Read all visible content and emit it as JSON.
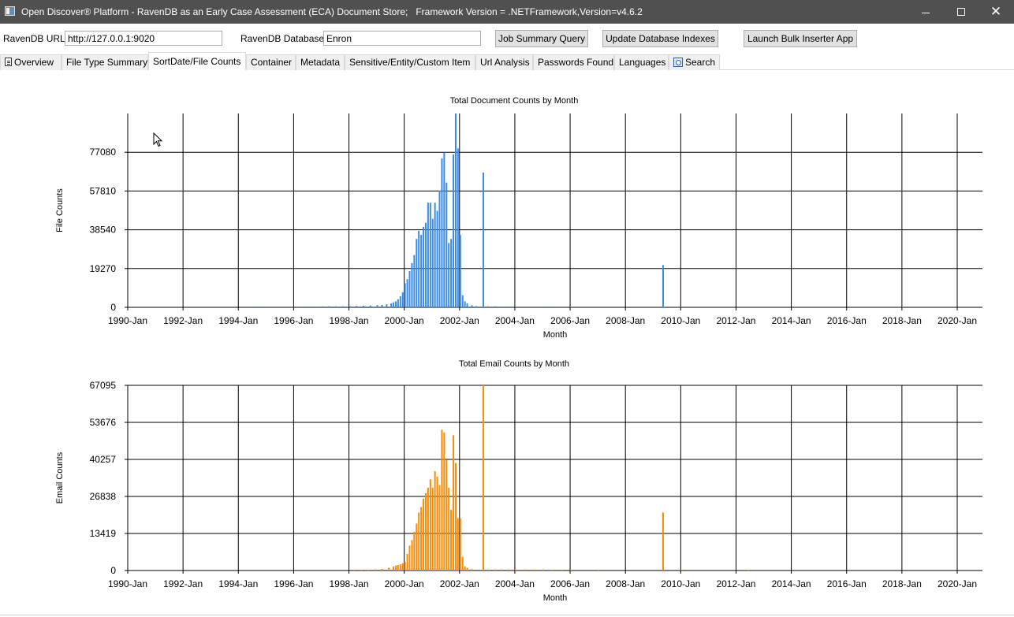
{
  "window": {
    "title": "Open Discover® Platform - RavenDB as an Early Case Assessment (ECA) Document Store;   Framework Version = .NETFramework,Version=v4.6.2"
  },
  "toolbar": {
    "url_label": "RavenDB URL:",
    "url_value": "http://127.0.0.1:9020",
    "db_label": "RavenDB Database:",
    "db_value": "Enron",
    "job_summary_label": "Job Summary Query",
    "update_indexes_label": "Update Database Indexes",
    "bulk_inserter_label": "Launch Bulk Inserter App"
  },
  "tabs": [
    {
      "label": "Overview",
      "icon": "document-icon"
    },
    {
      "label": "File Type Summary"
    },
    {
      "label": "SortDate/File Counts",
      "active": true
    },
    {
      "label": "Container"
    },
    {
      "label": "Metadata"
    },
    {
      "label": "Sensitive/Entity/Custom Item"
    },
    {
      "label": "Url Analysis"
    },
    {
      "label": "Passwords Found"
    },
    {
      "label": "Languages"
    },
    {
      "label": "Search",
      "icon": "search-icon"
    }
  ],
  "chart_data": [
    {
      "type": "bar",
      "title": "Total Document Counts by Month",
      "xlabel": "Month",
      "ylabel": "File Counts",
      "color": "#3c8ce6",
      "x_ticks": [
        "1990-Jan",
        "1992-Jan",
        "1994-Jan",
        "1996-Jan",
        "1998-Jan",
        "2000-Jan",
        "2002-Jan",
        "2004-Jan",
        "2006-Jan",
        "2008-Jan",
        "2010-Jan",
        "2012-Jan",
        "2014-Jan",
        "2016-Jan",
        "2018-Jan",
        "2020-Jan"
      ],
      "y_ticks": [
        0,
        19270,
        38540,
        57810,
        77080
      ],
      "ylim": [
        0,
        96350
      ],
      "xlim": [
        "1990-Jan",
        "2020-Dec"
      ],
      "grid": true,
      "points": [
        [
          "1994-Jul",
          300
        ],
        [
          "1994-Nov",
          300
        ],
        [
          "1995-Mar",
          300
        ],
        [
          "1996-Jan",
          400
        ],
        [
          "1996-May",
          400
        ],
        [
          "1996-Sep",
          400
        ],
        [
          "1997-Jan",
          500
        ],
        [
          "1997-Apr",
          500
        ],
        [
          "1997-Jul",
          500
        ],
        [
          "1997-Oct",
          500
        ],
        [
          "1998-Jan",
          600
        ],
        [
          "1998-Apr",
          700
        ],
        [
          "1998-Jul",
          800
        ],
        [
          "1998-Oct",
          900
        ],
        [
          "1999-Jan",
          1100
        ],
        [
          "1999-Mar",
          1200
        ],
        [
          "1999-May",
          1500
        ],
        [
          "1999-Jul",
          2000
        ],
        [
          "1999-Aug",
          2500
        ],
        [
          "1999-Sep",
          3000
        ],
        [
          "1999-Oct",
          4000
        ],
        [
          "1999-Nov",
          5500
        ],
        [
          "1999-Dec",
          7500
        ],
        [
          "2000-Jan",
          12000
        ],
        [
          "2000-Feb",
          14000
        ],
        [
          "2000-Mar",
          18000
        ],
        [
          "2000-Apr",
          22000
        ],
        [
          "2000-May",
          26000
        ],
        [
          "2000-Jun",
          34000
        ],
        [
          "2000-Jul",
          38000
        ],
        [
          "2000-Aug",
          36000
        ],
        [
          "2000-Sep",
          40000
        ],
        [
          "2000-Oct",
          42000
        ],
        [
          "2000-Nov",
          52000
        ],
        [
          "2000-Dec",
          52000
        ],
        [
          "2001-Jan",
          44000
        ],
        [
          "2001-Feb",
          52000
        ],
        [
          "2001-Mar",
          48000
        ],
        [
          "2001-Apr",
          58000
        ],
        [
          "2001-May",
          74000
        ],
        [
          "2001-Jun",
          77000
        ],
        [
          "2001-Jul",
          62000
        ],
        [
          "2001-Aug",
          32000
        ],
        [
          "2001-Sep",
          34000
        ],
        [
          "2001-Oct",
          76000
        ],
        [
          "2001-Nov",
          96350
        ],
        [
          "2001-Dec",
          79000
        ],
        [
          "2002-Jan",
          36000
        ],
        [
          "2002-Feb",
          6000
        ],
        [
          "2002-Mar",
          3000
        ],
        [
          "2002-Apr",
          2000
        ],
        [
          "2002-Jun",
          1000
        ],
        [
          "2002-Aug",
          600
        ],
        [
          "2002-Nov",
          67000
        ],
        [
          "2003-Jan",
          500
        ],
        [
          "2003-Apr",
          500
        ],
        [
          "2003-Jul",
          400
        ],
        [
          "2003-Oct",
          400
        ],
        [
          "2004-Jan",
          400
        ],
        [
          "2004-May",
          400
        ],
        [
          "2004-Sep",
          400
        ],
        [
          "2005-Jan",
          400
        ],
        [
          "2005-May",
          300
        ],
        [
          "2005-Sep",
          300
        ],
        [
          "2006-Jan",
          300
        ],
        [
          "2006-Jun",
          300
        ],
        [
          "2007-Jan",
          300
        ],
        [
          "2007-Jun",
          300
        ],
        [
          "2009-May",
          21000
        ],
        [
          "2010-Jan",
          300
        ],
        [
          "2012-Jun",
          300
        ],
        [
          "2017-Jul",
          300
        ],
        [
          "2018-Jan",
          300
        ],
        [
          "2018-May",
          300
        ]
      ]
    },
    {
      "type": "bar",
      "title": "Total Email Counts by Month",
      "xlabel": "Month",
      "ylabel": "Email Counts",
      "color": "#f58c0a",
      "x_ticks": [
        "1990-Jan",
        "1992-Jan",
        "1994-Jan",
        "1996-Jan",
        "1998-Jan",
        "2000-Jan",
        "2002-Jan",
        "2004-Jan",
        "2006-Jan",
        "2008-Jan",
        "2010-Jan",
        "2012-Jan",
        "2014-Jan",
        "2016-Jan",
        "2018-Jan",
        "2020-Jan"
      ],
      "y_ticks": [
        0,
        13419,
        26838,
        40257,
        53676,
        67095
      ],
      "ylim": [
        0,
        67095
      ],
      "xlim": [
        "1990-Jan",
        "2020-Dec"
      ],
      "grid": true,
      "points": [
        [
          "1998-Mar",
          200
        ],
        [
          "1998-Jun",
          200
        ],
        [
          "1998-Sep",
          300
        ],
        [
          "1998-Dec",
          400
        ],
        [
          "1999-Mar",
          600
        ],
        [
          "1999-Jun",
          1000
        ],
        [
          "1999-Aug",
          1500
        ],
        [
          "1999-Sep",
          1800
        ],
        [
          "1999-Oct",
          2000
        ],
        [
          "1999-Nov",
          2200
        ],
        [
          "1999-Dec",
          2600
        ],
        [
          "2000-Jan",
          3200
        ],
        [
          "2000-Feb",
          6000
        ],
        [
          "2000-Mar",
          9000
        ],
        [
          "2000-Apr",
          11000
        ],
        [
          "2000-May",
          14000
        ],
        [
          "2000-Jun",
          17000
        ],
        [
          "2000-Jul",
          21000
        ],
        [
          "2000-Aug",
          23000
        ],
        [
          "2000-Sep",
          26000
        ],
        [
          "2000-Oct",
          28000
        ],
        [
          "2000-Nov",
          30000
        ],
        [
          "2000-Dec",
          33000
        ],
        [
          "2001-Jan",
          30000
        ],
        [
          "2001-Feb",
          36000
        ],
        [
          "2001-Mar",
          34000
        ],
        [
          "2001-Apr",
          31000
        ],
        [
          "2001-May",
          51000
        ],
        [
          "2001-Jun",
          50000
        ],
        [
          "2001-Jul",
          40000
        ],
        [
          "2001-Aug",
          30000
        ],
        [
          "2001-Sep",
          22000
        ],
        [
          "2001-Oct",
          49000
        ],
        [
          "2001-Nov",
          39000
        ],
        [
          "2001-Dec",
          19000
        ],
        [
          "2002-Jan",
          19000
        ],
        [
          "2002-Feb",
          5000
        ],
        [
          "2002-Mar",
          1500
        ],
        [
          "2002-Apr",
          1000
        ],
        [
          "2002-Jun",
          500
        ],
        [
          "2002-Nov",
          67095
        ],
        [
          "2003-Jan",
          400
        ],
        [
          "2003-Apr",
          400
        ],
        [
          "2003-Jul",
          400
        ],
        [
          "2003-Oct",
          400
        ],
        [
          "2004-Jan",
          400
        ],
        [
          "2004-May",
          400
        ],
        [
          "2004-Sep",
          400
        ],
        [
          "2005-Jan",
          400
        ],
        [
          "2005-May",
          300
        ],
        [
          "2005-Sep",
          300
        ],
        [
          "2006-Jan",
          300
        ],
        [
          "2007-Jan",
          300
        ],
        [
          "2009-May",
          21000
        ],
        [
          "2010-Jan",
          300
        ],
        [
          "2012-Jun",
          300
        ]
      ]
    }
  ]
}
